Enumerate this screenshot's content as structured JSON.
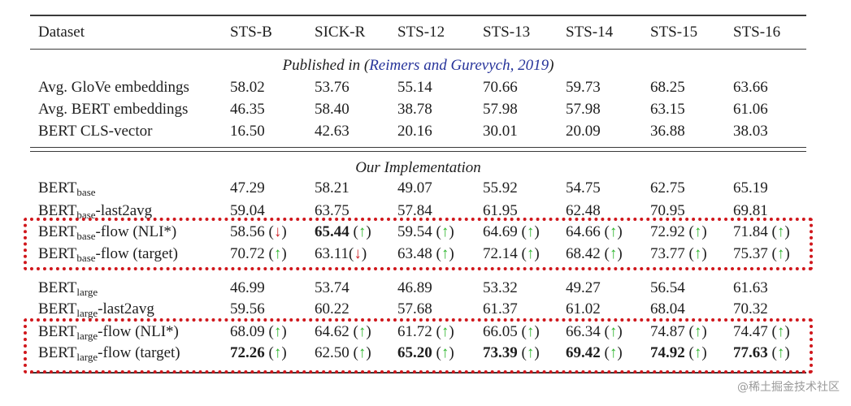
{
  "columns": [
    "Dataset",
    "STS-B",
    "SICK-R",
    "STS-12",
    "STS-13",
    "STS-14",
    "STS-15",
    "STS-16"
  ],
  "section1": {
    "prefix": "Published in (",
    "citation": "Reimers and Gurevych, 2019",
    "suffix": ")"
  },
  "section2": {
    "title": "Our Implementation"
  },
  "published_rows": [
    {
      "label": "Avg. GloVe embeddings",
      "values": [
        "58.02",
        "53.76",
        "55.14",
        "70.66",
        "59.73",
        "68.25",
        "63.66"
      ]
    },
    {
      "label": "Avg. BERT embeddings",
      "values": [
        "46.35",
        "58.40",
        "38.78",
        "57.98",
        "57.98",
        "63.15",
        "61.06"
      ]
    },
    {
      "label": "BERT CLS-vector",
      "values": [
        "16.50",
        "42.63",
        "20.16",
        "30.01",
        "20.09",
        "36.88",
        "38.03"
      ]
    }
  ],
  "impl_rows": [
    {
      "base": "BERT",
      "sub": "base",
      "suffix": "",
      "values": [
        {
          "v": "47.29"
        },
        {
          "v": "58.21"
        },
        {
          "v": "49.07"
        },
        {
          "v": "55.92"
        },
        {
          "v": "54.75"
        },
        {
          "v": "62.75"
        },
        {
          "v": "65.19"
        }
      ]
    },
    {
      "base": "BERT",
      "sub": "base",
      "suffix": "-last2avg",
      "values": [
        {
          "v": "59.04"
        },
        {
          "v": "63.75"
        },
        {
          "v": "57.84"
        },
        {
          "v": "61.95"
        },
        {
          "v": "62.48"
        },
        {
          "v": "70.95"
        },
        {
          "v": "69.81"
        }
      ]
    },
    {
      "base": "BERT",
      "sub": "base",
      "suffix": "-flow (NLI*)",
      "values": [
        {
          "v": "58.56",
          "arrow": "down"
        },
        {
          "v": "65.44",
          "bold": true,
          "arrow": "up"
        },
        {
          "v": "59.54",
          "arrow": "up"
        },
        {
          "v": "64.69",
          "arrow": "up"
        },
        {
          "v": "64.66",
          "arrow": "up"
        },
        {
          "v": "72.92",
          "arrow": "up"
        },
        {
          "v": "71.84",
          "arrow": "up"
        }
      ]
    },
    {
      "base": "BERT",
      "sub": "base",
      "suffix": "-flow (target)",
      "values": [
        {
          "v": "70.72",
          "arrow": "up"
        },
        {
          "v": "63.11",
          "arrow": "down",
          "tight": true
        },
        {
          "v": "63.48",
          "arrow": "up"
        },
        {
          "v": "72.14",
          "arrow": "up"
        },
        {
          "v": "68.42",
          "arrow": "up"
        },
        {
          "v": "73.77",
          "arrow": "up"
        },
        {
          "v": "75.37",
          "arrow": "up"
        }
      ]
    },
    {
      "base": "BERT",
      "sub": "large",
      "suffix": "",
      "values": [
        {
          "v": "46.99"
        },
        {
          "v": "53.74"
        },
        {
          "v": "46.89"
        },
        {
          "v": "53.32"
        },
        {
          "v": "49.27"
        },
        {
          "v": "56.54"
        },
        {
          "v": "61.63"
        }
      ]
    },
    {
      "base": "BERT",
      "sub": "large",
      "suffix": "-last2avg",
      "values": [
        {
          "v": "59.56"
        },
        {
          "v": "60.22"
        },
        {
          "v": "57.68"
        },
        {
          "v": "61.37"
        },
        {
          "v": "61.02"
        },
        {
          "v": "68.04"
        },
        {
          "v": "70.32"
        }
      ]
    },
    {
      "base": "BERT",
      "sub": "large",
      "suffix": "-flow (NLI*)",
      "values": [
        {
          "v": "68.09",
          "arrow": "up"
        },
        {
          "v": "64.62",
          "arrow": "up"
        },
        {
          "v": "61.72",
          "arrow": "up"
        },
        {
          "v": "66.05",
          "arrow": "up"
        },
        {
          "v": "66.34",
          "arrow": "up"
        },
        {
          "v": "74.87",
          "arrow": "up"
        },
        {
          "v": "74.47",
          "arrow": "up"
        }
      ]
    },
    {
      "base": "BERT",
      "sub": "large",
      "suffix": "-flow (target)",
      "values": [
        {
          "v": "72.26",
          "bold": true,
          "arrow": "up"
        },
        {
          "v": "62.50",
          "arrow": "up"
        },
        {
          "v": "65.20",
          "bold": true,
          "arrow": "up"
        },
        {
          "v": "73.39",
          "bold": true,
          "arrow": "up"
        },
        {
          "v": "69.42",
          "bold": true,
          "arrow": "up"
        },
        {
          "v": "74.92",
          "bold": true,
          "arrow": "up"
        },
        {
          "v": "77.63",
          "bold": true,
          "arrow": "up"
        }
      ]
    }
  ],
  "arrows": {
    "up": "↑",
    "down": "↓"
  },
  "colors": {
    "up": "#2bb52b",
    "down": "#d0262a",
    "highlight_box": "#d0171c",
    "citation": "#26339a"
  },
  "watermark": "@稀土掘金技术社区"
}
